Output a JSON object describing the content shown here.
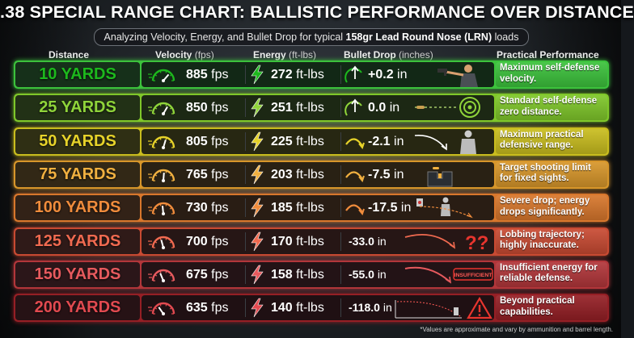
{
  "title": ".38 SPECIAL RANGE CHART: BALLISTIC PERFORMANCE OVER DISTANCE",
  "subtitle": {
    "prefix": "Analyzing Velocity, Energy, and Bullet Drop for typical ",
    "bold": "158gr Lead Round Nose (LRN)",
    "suffix": " loads"
  },
  "headers": {
    "distance": "Distance",
    "velocity": "Velocity",
    "velocity_unit": "(fps)",
    "energy": "Energy",
    "energy_unit": "(ft-lbs)",
    "drop": "Bullet Drop",
    "drop_unit": "(inches)",
    "performance": "Practical Performance"
  },
  "footnote": "*Values are approximate and vary by ammunition and barrel length.",
  "chart_data": {
    "type": "table",
    "title": ".38 SPECIAL RANGE CHART: BALLISTIC PERFORMANCE OVER DISTANCE",
    "columns": [
      "Distance",
      "Velocity (fps)",
      "Energy (ft-lbs)",
      "Bullet Drop (inches)",
      "Practical Performance"
    ],
    "rows": [
      {
        "distance": "10 YARDS",
        "velocity": "885",
        "velocity_unit": "fps",
        "energy": "272",
        "energy_unit": "ft-lbs",
        "drop": "+0.2",
        "drop_unit": "in",
        "performance": "Maximum self-defense velocity.",
        "color": "#3cc23c",
        "text_color": "#1db81d",
        "visual": "shooter"
      },
      {
        "distance": "25 YARDS",
        "velocity": "850",
        "velocity_unit": "fps",
        "energy": "251",
        "energy_unit": "ft-lbs",
        "drop": "0.0",
        "drop_unit": "in",
        "performance": "Standard self-defense zero distance.",
        "color": "#7fc72a",
        "text_color": "#8fd43a",
        "visual": "target"
      },
      {
        "distance": "50 YARDS",
        "velocity": "805",
        "velocity_unit": "fps",
        "energy": "225",
        "energy_unit": "ft-lbs",
        "drop": "-2.1",
        "drop_unit": "in",
        "performance": "Maximum practical defensive range.",
        "color": "#c9bd1e",
        "text_color": "#e6d22a",
        "visual": "silhouette"
      },
      {
        "distance": "75 YARDS",
        "velocity": "765",
        "velocity_unit": "fps",
        "energy": "203",
        "energy_unit": "ft-lbs",
        "drop": "-7.5",
        "drop_unit": "in",
        "performance": "Target shooting limit for fixed sights.",
        "color": "#d7962a",
        "text_color": "#f0b040",
        "visual": "sights"
      },
      {
        "distance": "100 YARDS",
        "velocity": "730",
        "velocity_unit": "fps",
        "energy": "185",
        "energy_unit": "ft-lbs",
        "drop": "-17.5",
        "drop_unit": "in",
        "performance": "Severe drop; energy drops significantly.",
        "color": "#d8772c",
        "text_color": "#f08c3c",
        "visual": "drop"
      },
      {
        "distance": "125 YARDS",
        "velocity": "700",
        "velocity_unit": "fps",
        "energy": "170",
        "energy_unit": "ft-lbs",
        "drop": "-33.0",
        "drop_unit": "in",
        "performance": "Lobbing trajectory; highly inaccurate.",
        "color": "#c84a32",
        "text_color": "#f06a50",
        "visual": "question",
        "glyph": "??"
      },
      {
        "distance": "150 YARDS",
        "velocity": "675",
        "velocity_unit": "fps",
        "energy": "158",
        "energy_unit": "ft-lbs",
        "drop": "-55.0",
        "drop_unit": "in",
        "performance": "Insufficient energy for reliable defense.",
        "color": "#b2363a",
        "text_color": "#e75a5e",
        "visual": "insufficient",
        "badge": "INSUFFICIENT"
      },
      {
        "distance": "200 YARDS",
        "velocity": "635",
        "velocity_unit": "fps",
        "energy": "140",
        "energy_unit": "ft-lbs",
        "drop": "-118.0",
        "drop_unit": "in",
        "performance": "Beyond practical capabilities.",
        "color": "#951f25",
        "text_color": "#e24a50",
        "visual": "warning"
      }
    ]
  }
}
